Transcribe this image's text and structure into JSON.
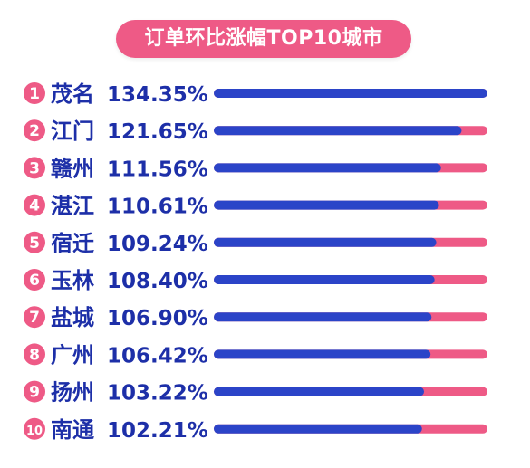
{
  "colors": {
    "title_bg": "#ee5a86",
    "rank_circle": "#ee5a86",
    "bar_fill": "#2b44c8",
    "bar_track": "#ee5a86",
    "text": "#1d2fa8"
  },
  "chart_data": {
    "type": "bar",
    "orientation": "horizontal",
    "title": "订单环比涨幅TOP10城市",
    "unit": "%",
    "xlim": [
      0,
      134.35
    ],
    "grid": false,
    "legend": "none",
    "ranks": [
      "1",
      "2",
      "3",
      "4",
      "5",
      "6",
      "7",
      "8",
      "9",
      "10"
    ],
    "categories": [
      "茂名",
      "江门",
      "赣州",
      "湛江",
      "宿迁",
      "玉林",
      "盐城",
      "广州",
      "扬州",
      "南通"
    ],
    "values": [
      134.35,
      121.65,
      111.56,
      110.61,
      109.24,
      108.4,
      106.9,
      106.42,
      103.22,
      102.21
    ],
    "value_labels": [
      "134.35%",
      "121.65%",
      "111.56%",
      "110.61%",
      "109.24%",
      "108.40%",
      "106.90%",
      "106.42%",
      "103.22%",
      "102.21%"
    ]
  }
}
